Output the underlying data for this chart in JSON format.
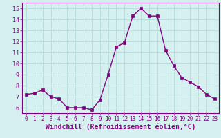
{
  "x": [
    0,
    1,
    2,
    3,
    4,
    5,
    6,
    7,
    8,
    9,
    10,
    11,
    12,
    13,
    14,
    15,
    16,
    17,
    18,
    19,
    20,
    21,
    22,
    23
  ],
  "y": [
    7.2,
    7.3,
    7.6,
    7.0,
    6.8,
    6.0,
    6.0,
    6.0,
    5.8,
    6.7,
    9.0,
    11.5,
    11.9,
    14.3,
    15.0,
    14.3,
    14.3,
    11.2,
    9.8,
    8.7,
    8.3,
    7.9,
    7.2,
    6.8
  ],
  "line_color": "#800080",
  "marker": "s",
  "markersize": 2.5,
  "linewidth": 1.0,
  "bg_color": "#d6f0f0",
  "grid_color": "#b8dede",
  "xlabel": "Windchill (Refroidissement éolien,°C)",
  "xlabel_fontsize": 7,
  "tick_fontsize": 6,
  "ylim": [
    5.5,
    15.5
  ],
  "yticks": [
    6,
    7,
    8,
    9,
    10,
    11,
    12,
    13,
    14,
    15
  ],
  "xticks": [
    0,
    1,
    2,
    3,
    4,
    5,
    6,
    7,
    8,
    9,
    10,
    11,
    12,
    13,
    14,
    15,
    16,
    17,
    18,
    19,
    20,
    21,
    22,
    23
  ]
}
